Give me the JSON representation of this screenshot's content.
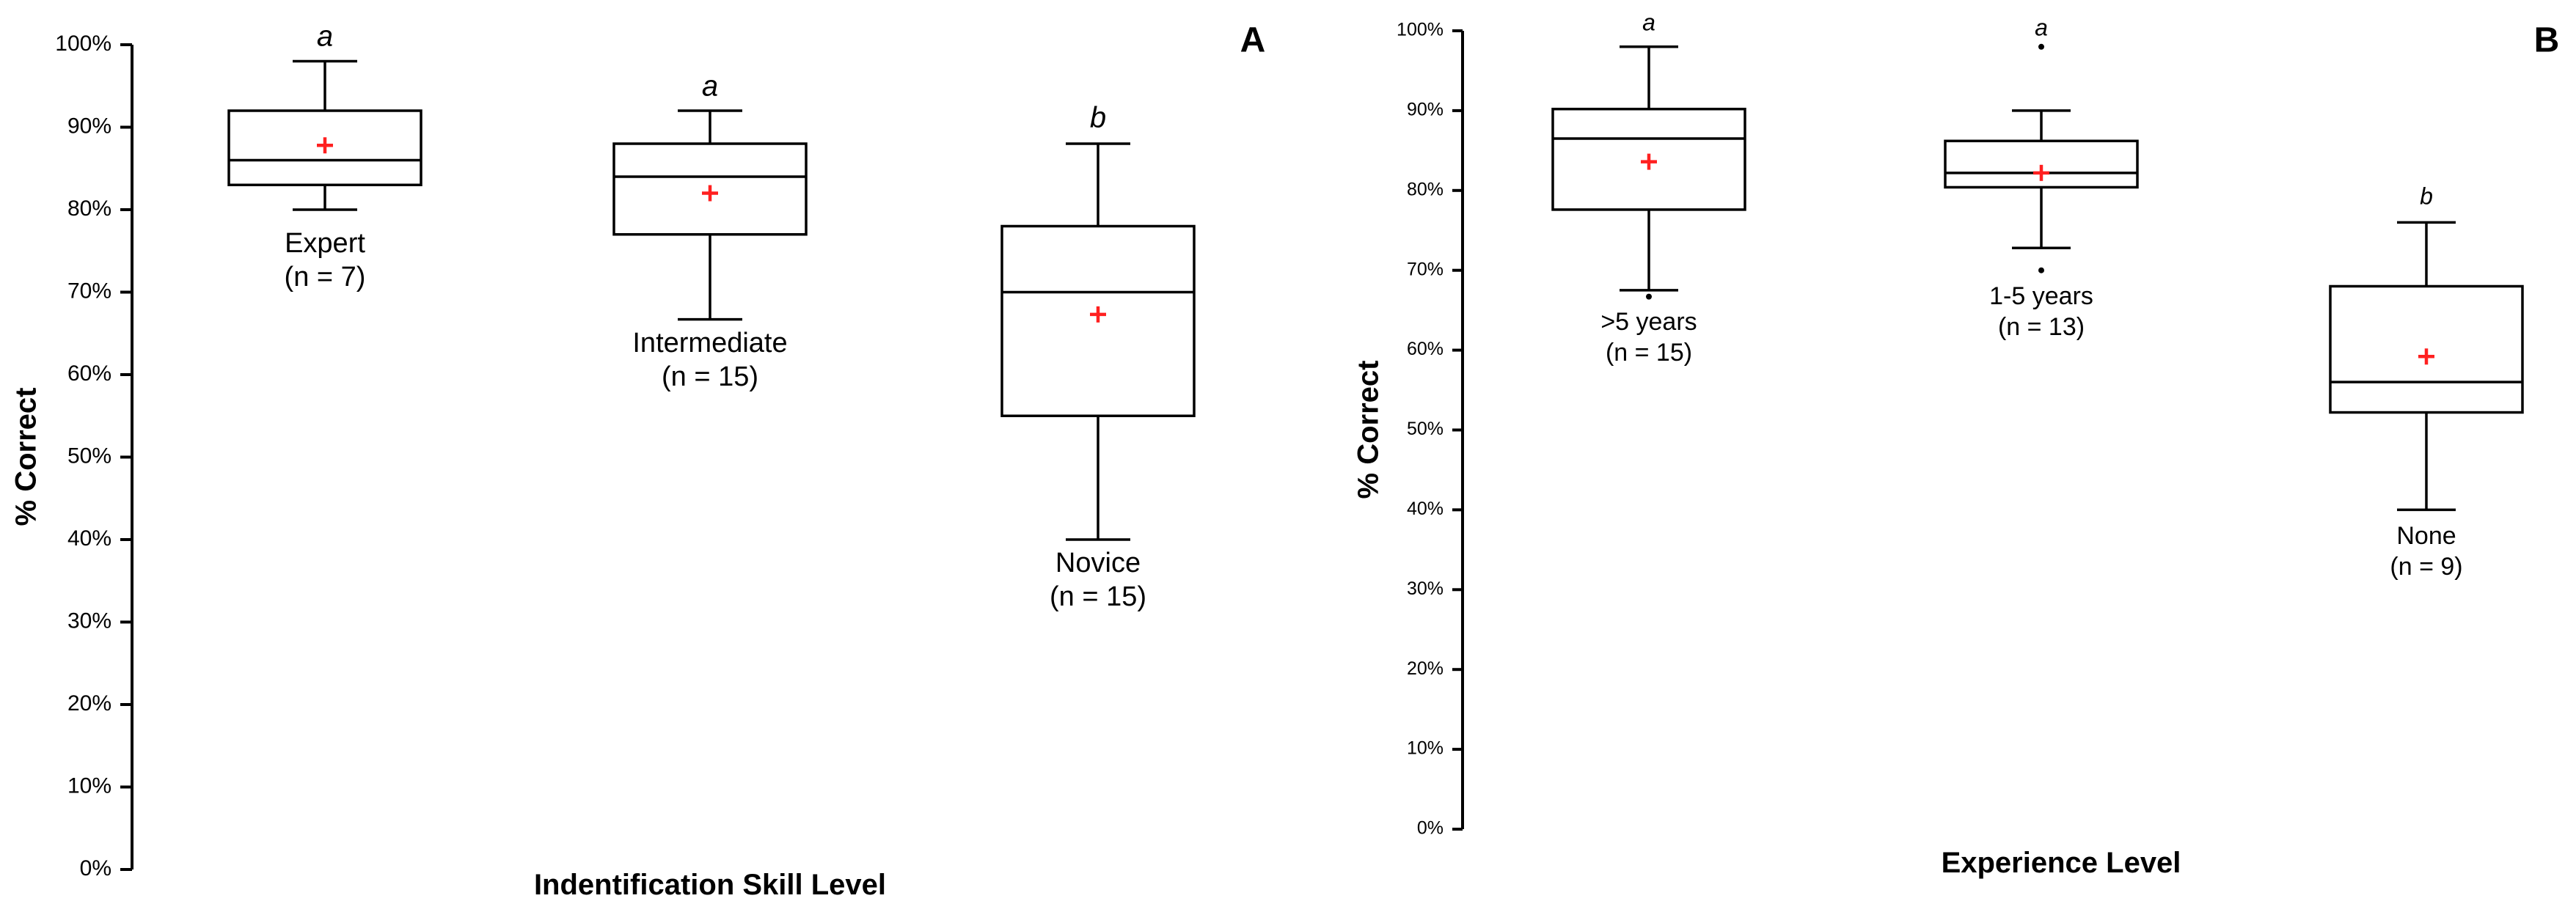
{
  "chart_data": [
    {
      "type": "boxplot",
      "panel_label": "A",
      "title": "",
      "xlabel": "Indentification Skill Level",
      "ylabel": "% Correct",
      "ylim": [
        0,
        100
      ],
      "yticks": [
        "0%",
        "10%",
        "20%",
        "30%",
        "40%",
        "50%",
        "60%",
        "70%",
        "80%",
        "90%",
        "100%"
      ],
      "groups": [
        {
          "name": "Expert",
          "n_label": "(n = 7)",
          "sig": "a",
          "min": 80,
          "q1": 83,
          "median": 86,
          "q3": 92,
          "max": 98,
          "mean": 87.8,
          "outliers": []
        },
        {
          "name": "Intermediate",
          "n_label": "(n = 15)",
          "sig": "a",
          "min": 66.7,
          "q1": 77,
          "median": 84,
          "q3": 88,
          "max": 92,
          "mean": 82,
          "outliers": []
        },
        {
          "name": "Novice",
          "n_label": "(n = 15)",
          "sig": "b",
          "min": 40,
          "q1": 55,
          "median": 70,
          "q3": 78,
          "max": 88,
          "mean": 67.3,
          "outliers": []
        }
      ],
      "mean_marker_color": "#ff2020"
    },
    {
      "type": "boxplot",
      "panel_label": "B",
      "title": "",
      "xlabel": "Experience Level",
      "ylabel": "% Correct",
      "ylim": [
        0,
        100
      ],
      "yticks": [
        "0%",
        "10%",
        "20%",
        "30%",
        "40%",
        "50%",
        "60%",
        "70%",
        "80%",
        "90%",
        "100%"
      ],
      "groups": [
        {
          "name": ">5 years",
          "n_label": "(n = 15)",
          "sig": "a",
          "min": 67.5,
          "q1": 77.6,
          "median": 86.5,
          "q3": 90.2,
          "max": 98,
          "mean": 83.6,
          "outliers": [
            66.7
          ]
        },
        {
          "name": "1-5 years",
          "n_label": "(n = 13)",
          "sig": "a",
          "min": 72.8,
          "q1": 80.4,
          "median": 82.2,
          "q3": 86.2,
          "max": 90,
          "mean": 82.2,
          "outliers": [
            70,
            98
          ]
        },
        {
          "name": "None",
          "n_label": "(n = 9)",
          "sig": "b",
          "min": 40,
          "q1": 52.2,
          "median": 56,
          "q3": 68,
          "max": 76,
          "mean": 59.2,
          "outliers": []
        }
      ],
      "mean_marker_color": "#ff2020"
    }
  ]
}
